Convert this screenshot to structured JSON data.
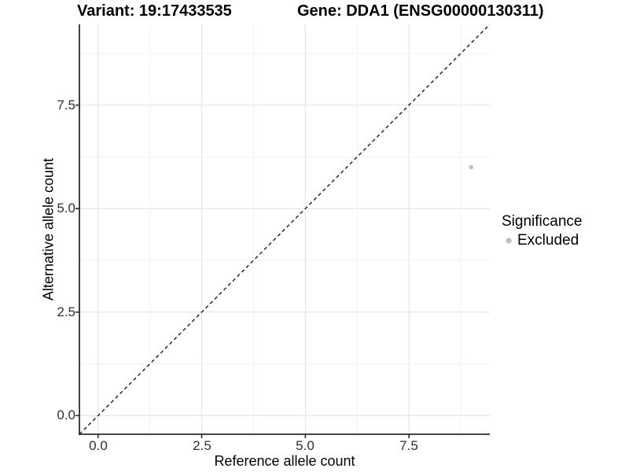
{
  "title": {
    "variant": "Variant: 19:17433535",
    "gene": "Gene: DDA1 (ENSG00000130311)"
  },
  "chart_data": {
    "type": "scatter",
    "title": "Variant: 19:17433535   Gene: DDA1 (ENSG00000130311)",
    "xlabel": "Reference allele count",
    "ylabel": "Alternative allele count",
    "xlim": [
      -0.45,
      9.45
    ],
    "ylim": [
      -0.45,
      9.45
    ],
    "x_ticks": [
      0,
      2.5,
      5,
      7.5
    ],
    "y_ticks": [
      0,
      2.5,
      5,
      7.5
    ],
    "x_tick_labels": [
      "0.0",
      "2.5",
      "5.0",
      "7.5"
    ],
    "y_tick_labels": [
      "0.0",
      "2.5",
      "5.0",
      "7.5"
    ],
    "x_minor_ticks": [
      1.25,
      3.75,
      6.25,
      8.75
    ],
    "y_minor_ticks": [
      1.25,
      3.75,
      6.25,
      8.75
    ],
    "grid": "major and minor gridlines, white panel background",
    "reference_line": {
      "type": "abline",
      "intercept": 0,
      "slope": 1,
      "style": "dashed"
    },
    "series": [
      {
        "name": "Excluded",
        "color": "#bebebe",
        "points": [
          {
            "x": 9,
            "y": 6
          }
        ]
      }
    ],
    "legend": {
      "title": "Significance",
      "position": "right",
      "items": [
        {
          "label": "Excluded",
          "color": "#bebebe"
        }
      ]
    },
    "colors": {
      "point": "#bebebe",
      "grid_major": "#e7e7e7",
      "grid_minor": "#f3f3f3",
      "axis_line": "#2b2b2b",
      "reference_line": "#1a1a1a",
      "tick_label": "#303030"
    }
  }
}
